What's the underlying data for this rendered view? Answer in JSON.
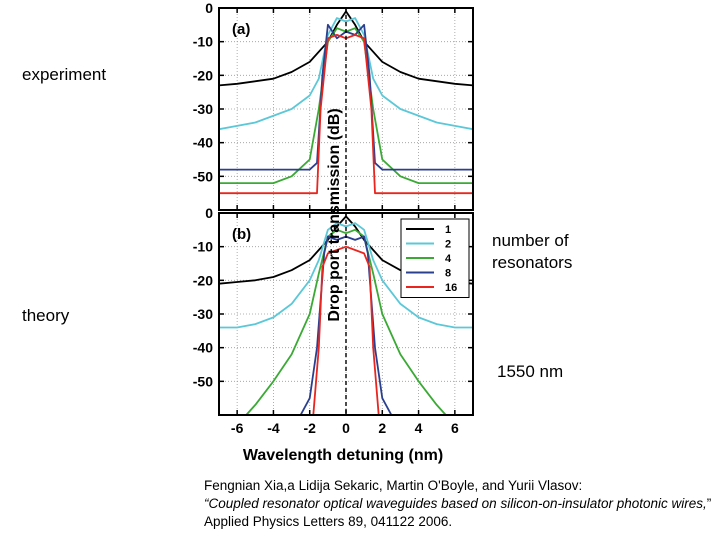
{
  "slide": {
    "experiment_label": "experiment",
    "theory_label": "theory",
    "resonators_label_line1": "number of",
    "resonators_label_line2": "resonators",
    "wavelength_note": "1550 nm",
    "citation_authors": "Fengnian Xia,a Lidija Sekaric, Martin O'Boyle, and Yurii Vlasov:",
    "citation_title": "“Coupled resonator optical waveguides based on silicon-on-insulator photonic wires,",
    "citation_tail": "” Applied Physics Letters 89, 041122 2006."
  },
  "colors": {
    "1": "#000000",
    "2": "#5bc8d8",
    "4": "#3aaa35",
    "8": "#2b3f8f",
    "16": "#e8261f"
  },
  "chart_data": [
    {
      "type": "line",
      "panel_label": "(a)",
      "xlabel": "Wavelength detuning (nm)",
      "ylabel": "Drop port transmission (dB)",
      "xlim": [
        -7,
        7
      ],
      "ylim": [
        -60,
        0
      ],
      "xticks": [
        "-6",
        "-4",
        "-2",
        "0",
        "2",
        "4",
        "6"
      ],
      "yticks": [
        "0",
        "-10",
        "-20",
        "-30",
        "-40",
        "-50"
      ],
      "grid": true,
      "series": [
        {
          "name": "1",
          "x": [
            -7,
            -6,
            -4,
            -3,
            -2,
            -1,
            -0.5,
            0,
            0.5,
            1,
            2,
            3,
            4,
            6,
            7
          ],
          "values": [
            -23,
            -22.5,
            -21,
            -19,
            -16,
            -10,
            -5,
            -1,
            -5,
            -10,
            -16,
            -19,
            -21,
            -22.5,
            -23
          ]
        },
        {
          "name": "2",
          "x": [
            -7,
            -5,
            -3,
            -2,
            -1.5,
            -1,
            -0.5,
            0,
            0.5,
            1,
            1.5,
            2,
            3,
            5,
            7
          ],
          "values": [
            -36,
            -34,
            -30,
            -26,
            -21,
            -8,
            -3,
            -4,
            -3,
            -8,
            -21,
            -26,
            -30,
            -34,
            -36
          ]
        },
        {
          "name": "4",
          "x": [
            -7,
            -4,
            -3,
            -2,
            -1.5,
            -1,
            -0.5,
            0,
            0.5,
            1,
            1.5,
            2,
            3,
            4,
            7
          ],
          "values": [
            -52,
            -52,
            -50,
            -45,
            -30,
            -10,
            -6,
            -7,
            -6,
            -10,
            -30,
            -45,
            -50,
            -52,
            -52
          ]
        },
        {
          "name": "8",
          "x": [
            -7,
            -4,
            -2,
            -1.6,
            -1.3,
            -1,
            -0.5,
            0,
            0.5,
            1,
            1.3,
            1.6,
            2,
            4,
            7
          ],
          "values": [
            -48,
            -48,
            -48,
            -46,
            -20,
            -5,
            -9,
            -7,
            -8,
            -5,
            -20,
            -46,
            -48,
            -48,
            -48
          ]
        },
        {
          "name": "16",
          "x": [
            -7,
            -4,
            -2,
            -1.6,
            -1.4,
            -1,
            -0.5,
            0,
            0.5,
            1,
            1.4,
            1.6,
            2,
            4,
            7
          ],
          "values": [
            -55,
            -55,
            -55,
            -55,
            -30,
            -9,
            -8,
            -9,
            -8,
            -9,
            -30,
            -55,
            -55,
            -55,
            -55
          ]
        }
      ]
    },
    {
      "type": "line",
      "panel_label": "(b)",
      "xlabel": "Wavelength detuning (nm)",
      "ylabel": "Drop port transmission (dB)",
      "xlim": [
        -7,
        7
      ],
      "ylim": [
        -60,
        0
      ],
      "xticks": [
        "-6",
        "-4",
        "-2",
        "0",
        "2",
        "4",
        "6"
      ],
      "yticks": [
        "0",
        "-10",
        "-20",
        "-30",
        "-40",
        "-50"
      ],
      "grid": true,
      "legend_position": "top-right",
      "series": [
        {
          "name": "1",
          "x": [
            -7,
            -6,
            -5,
            -4,
            -3,
            -2,
            -1,
            -0.5,
            0,
            0.5,
            1,
            2,
            3,
            4,
            5,
            6,
            7
          ],
          "values": [
            -21,
            -20.5,
            -20,
            -19,
            -17,
            -14,
            -8,
            -4,
            -1,
            -4,
            -8,
            -14,
            -17,
            -19,
            -20,
            -20.5,
            -21
          ]
        },
        {
          "name": "2",
          "x": [
            -7,
            -6,
            -5,
            -4,
            -3,
            -2,
            -1.5,
            -1,
            -0.5,
            0,
            0.5,
            1,
            1.5,
            2,
            3,
            4,
            5,
            6,
            7
          ],
          "values": [
            -34,
            -34,
            -33,
            -31,
            -27,
            -20,
            -14,
            -5,
            -3,
            -4,
            -3,
            -5,
            -14,
            -20,
            -27,
            -31,
            -33,
            -34,
            -34
          ]
        },
        {
          "name": "4",
          "x": [
            -5.5,
            -5,
            -4,
            -3,
            -2,
            -1.5,
            -1,
            -0.5,
            0,
            0.5,
            1,
            1.5,
            2,
            3,
            4,
            5,
            5.5
          ],
          "values": [
            -60,
            -57,
            -50,
            -42,
            -30,
            -18,
            -7,
            -5,
            -6,
            -5,
            -7,
            -18,
            -30,
            -42,
            -50,
            -57,
            -60
          ]
        },
        {
          "name": "8",
          "x": [
            -2.5,
            -2,
            -1.6,
            -1.2,
            -1,
            -0.5,
            0,
            0.5,
            1,
            1.2,
            1.6,
            2,
            2.5
          ],
          "values": [
            -60,
            -55,
            -40,
            -12,
            -7,
            -8,
            -7,
            -8,
            -7,
            -12,
            -40,
            -55,
            -60
          ]
        },
        {
          "name": "16",
          "x": [
            -1.8,
            -1.5,
            -1.3,
            -1,
            -0.5,
            0,
            0.5,
            1,
            1.3,
            1.5,
            1.8
          ],
          "values": [
            -60,
            -40,
            -16,
            -12,
            -11,
            -10,
            -11,
            -12,
            -16,
            -40,
            -60
          ]
        }
      ]
    }
  ]
}
